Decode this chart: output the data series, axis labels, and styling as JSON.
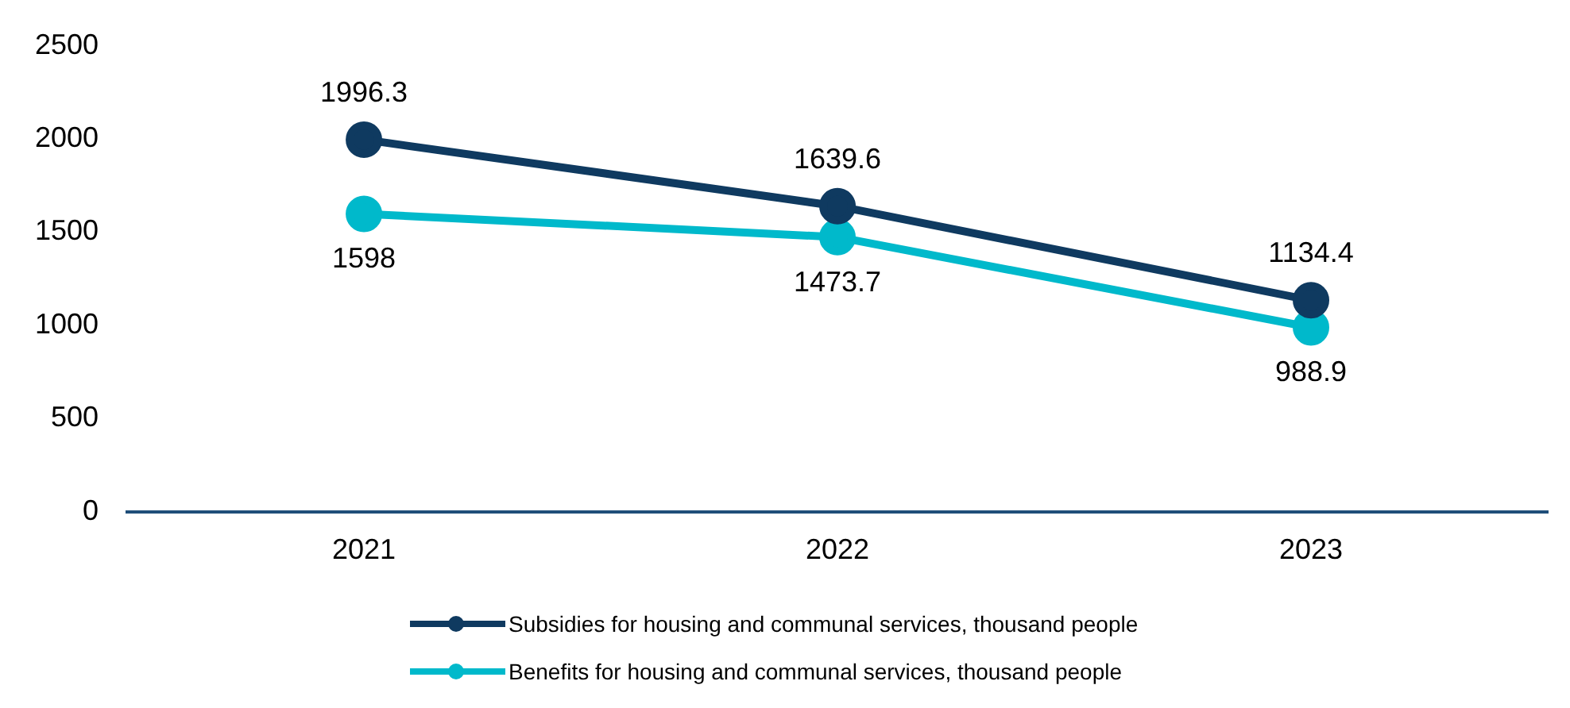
{
  "chart_data": {
    "type": "line",
    "categories": [
      "2021",
      "2022",
      "2023"
    ],
    "series": [
      {
        "name": "Subsidies for housing and communal services, thousand people",
        "color": "#0f3a60",
        "values": [
          1996.3,
          1639.6,
          1134.4
        ]
      },
      {
        "name": "Benefits for housing and communal services, thousand people",
        "color": "#00b9cb",
        "values": [
          1598,
          1473.7,
          988.9
        ]
      }
    ],
    "ylim": [
      0,
      2500
    ],
    "yticks": [
      0,
      500,
      1000,
      1500,
      2000,
      2500
    ],
    "grid": false,
    "legend": "bottom",
    "marker": "circle",
    "line_style": "solid",
    "data_labels": true
  }
}
